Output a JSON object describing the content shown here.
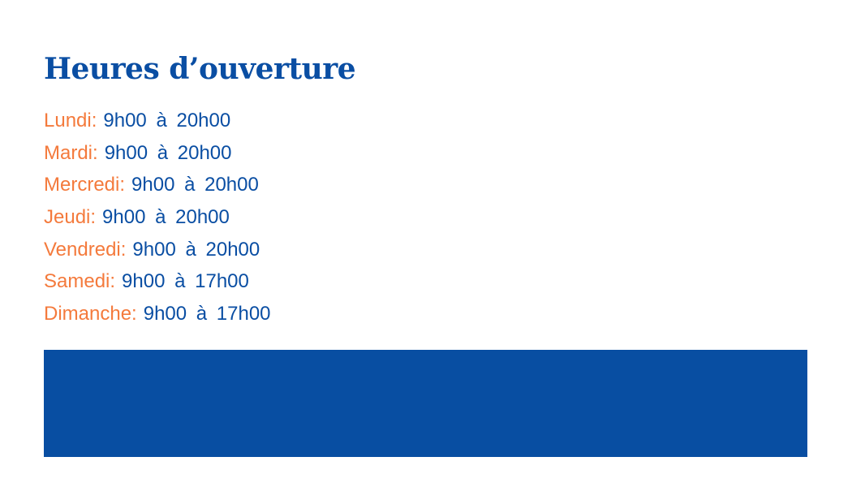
{
  "title": "Heures d’ouverture",
  "hours": [
    {
      "day": "Lundi:",
      "time": "9h00 à 20h00"
    },
    {
      "day": "Mardi:",
      "time": "9h00 à 20h00"
    },
    {
      "day": "Mercredi:",
      "time": "9h00 à 20h00"
    },
    {
      "day": "Jeudi:",
      "time": "9h00 à 20h00"
    },
    {
      "day": "Vendredi:",
      "time": "9h00 à 20h00"
    },
    {
      "day": "Samedi:",
      "time": "9h00 à 17h00"
    },
    {
      "day": "Dimanche:",
      "time": "9h00 à 17h00"
    }
  ],
  "colors": {
    "primary": "#0a4ea3",
    "accent": "#f47a3c",
    "banner": "#084ea2"
  }
}
